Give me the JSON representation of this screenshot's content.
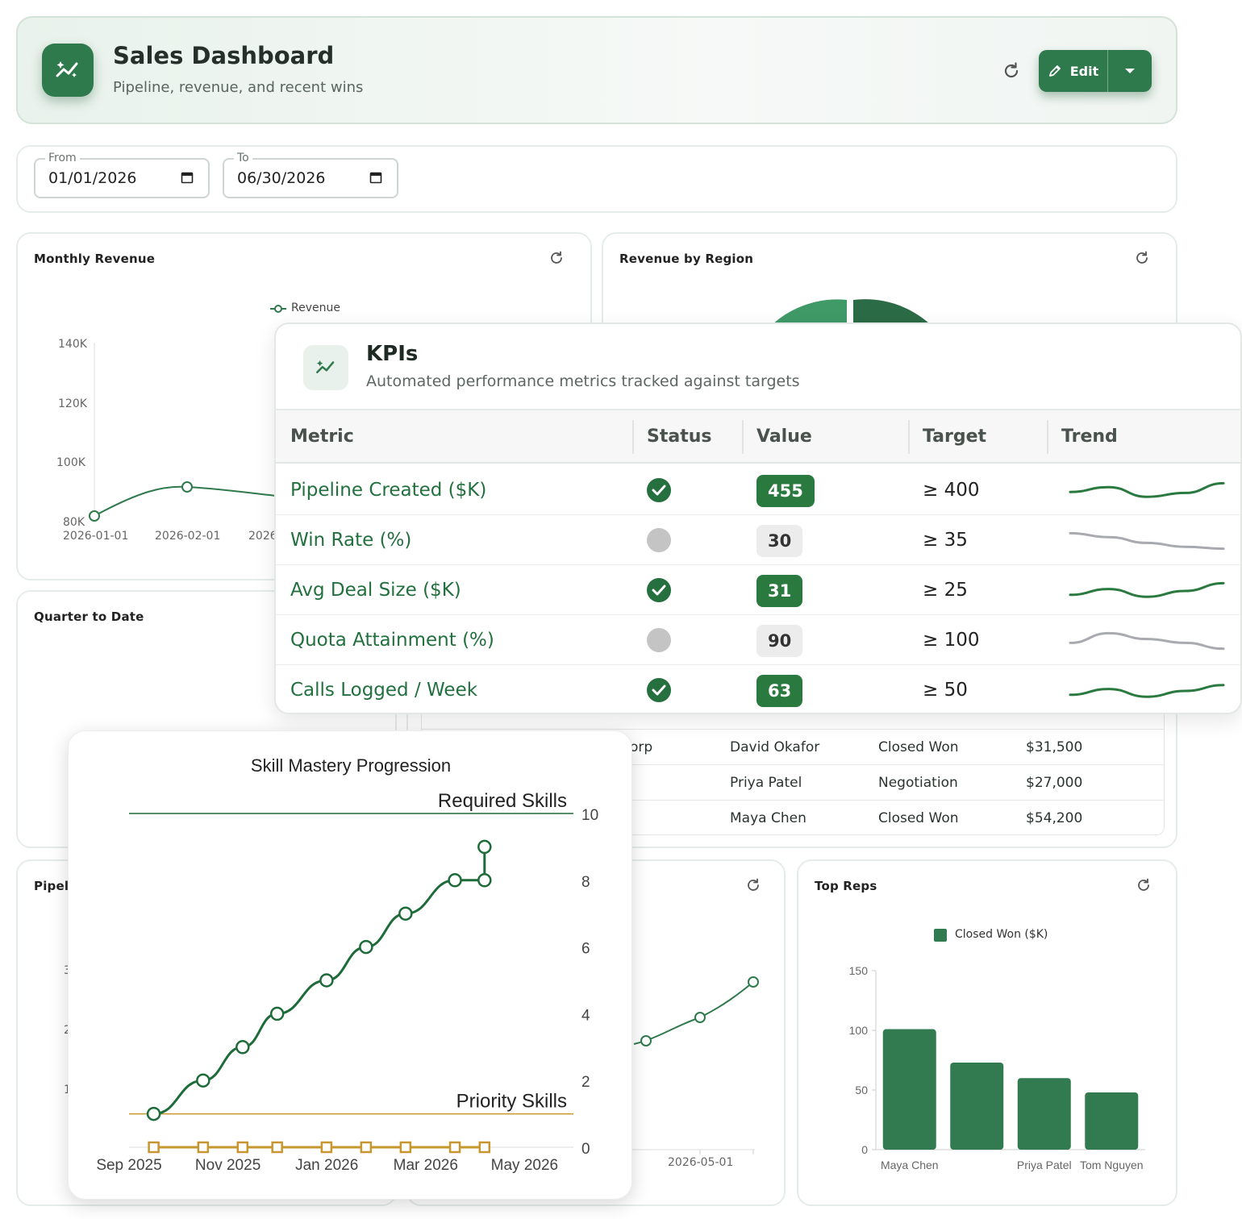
{
  "header": {
    "title": "Sales Dashboard",
    "subtitle": "Pipeline, revenue, and recent wins",
    "edit_label": "Edit"
  },
  "date_range": {
    "from_label": "From",
    "from_value": "01/01/2026",
    "to_label": "To",
    "to_value": "06/30/2026"
  },
  "monthly_revenue": {
    "title": "Monthly Revenue",
    "legend": "Revenue",
    "y_ticks": [
      "140K",
      "120K",
      "100K",
      "80K"
    ],
    "x_ticks": [
      "2026-01-01",
      "2026-02-01",
      "2026"
    ]
  },
  "revenue_by_region": {
    "title": "Revenue by Region"
  },
  "quarter_to_date": {
    "title": "Quarter to Date"
  },
  "pipeline": {
    "title": "Pipeli",
    "y_ticks": [
      "3",
      "2",
      "1"
    ]
  },
  "mid_chart": {
    "x_tick": "2026-05-01"
  },
  "recent_deals": {
    "rows": [
      {
        "company": "orp",
        "rep": "David Okafor",
        "stage": "Closed Won",
        "amount": "$31,500"
      },
      {
        "company": "",
        "rep": "Priya Patel",
        "stage": "Negotiation",
        "amount": "$27,000"
      },
      {
        "company": "",
        "rep": "Maya Chen",
        "stage": "Closed Won",
        "amount": "$54,200"
      }
    ]
  },
  "kpis": {
    "title": "KPIs",
    "subtitle": "Automated performance metrics tracked against targets",
    "columns": [
      "Metric",
      "Status",
      "Value",
      "Target",
      "Trend"
    ],
    "rows": [
      {
        "metric": "Pipeline Created ($K)",
        "status": "met",
        "value": "455",
        "target": "≥ 400",
        "trend": [
          0.45,
          0.7,
          0.2,
          0.4,
          0.9
        ]
      },
      {
        "metric": "Win Rate (%)",
        "status": "not-met",
        "value": "30",
        "target": "≥ 35",
        "trend": [
          0.9,
          0.7,
          0.4,
          0.2,
          0.1
        ]
      },
      {
        "metric": "Avg Deal Size ($K)",
        "status": "met",
        "value": "31",
        "target": "≥ 25",
        "trend": [
          0.3,
          0.6,
          0.2,
          0.5,
          0.9
        ]
      },
      {
        "metric": "Quota Attainment (%)",
        "status": "not-met",
        "value": "90",
        "target": "≥ 100",
        "trend": [
          0.4,
          0.9,
          0.6,
          0.4,
          0.1
        ]
      },
      {
        "metric": "Calls Logged / Week",
        "status": "met",
        "value": "63",
        "target": "≥ 50",
        "trend": [
          0.3,
          0.6,
          0.2,
          0.5,
          0.8
        ]
      }
    ],
    "colors": {
      "good": "#2a7a40",
      "neutral": "#a8aab0"
    }
  },
  "top_reps": {
    "title": "Top Reps",
    "chart_data": {
      "type": "bar",
      "categories": [
        "Maya Chen",
        "",
        "Priya Patel",
        "Tom Nguyen"
      ],
      "series": [
        {
          "name": "Closed Won ($K)",
          "values": [
            101,
            73,
            60,
            48
          ]
        }
      ],
      "ylim": [
        0,
        150
      ],
      "y_ticks": [
        0,
        50,
        100,
        150
      ],
      "color": "#327a50"
    }
  },
  "skill_mastery": {
    "chart_data": {
      "type": "line",
      "title": "Skill Mastery Progression",
      "x_ticks": [
        "Sep 2025",
        "Nov 2025",
        "Jan 2026",
        "Mar 2026",
        "May 2026"
      ],
      "x_range": [
        0,
        9
      ],
      "ylim": [
        0,
        10
      ],
      "y_ticks": [
        0,
        2,
        4,
        6,
        8,
        10
      ],
      "reference_lines": [
        {
          "label": "Required Skills",
          "y": 10,
          "color": "#1e6b3a"
        },
        {
          "label": "Priority Skills",
          "y": 1,
          "color": "#c8962e"
        }
      ],
      "series": [
        {
          "color": "#1e6b3a",
          "x": [
            0.5,
            1.5,
            2.3,
            3.0,
            4.0,
            4.8,
            5.6,
            6.6,
            7.2,
            7.2
          ],
          "y": [
            1,
            2,
            3,
            4,
            5,
            6,
            7,
            8,
            8,
            9
          ]
        },
        {
          "color": "#c8962e",
          "x": [
            0.5,
            1.5,
            2.3,
            3.0,
            4.0,
            4.8,
            5.6,
            6.6,
            7.2
          ],
          "y": [
            0,
            0,
            0,
            0,
            0,
            0,
            0,
            0,
            0
          ]
        }
      ]
    }
  }
}
